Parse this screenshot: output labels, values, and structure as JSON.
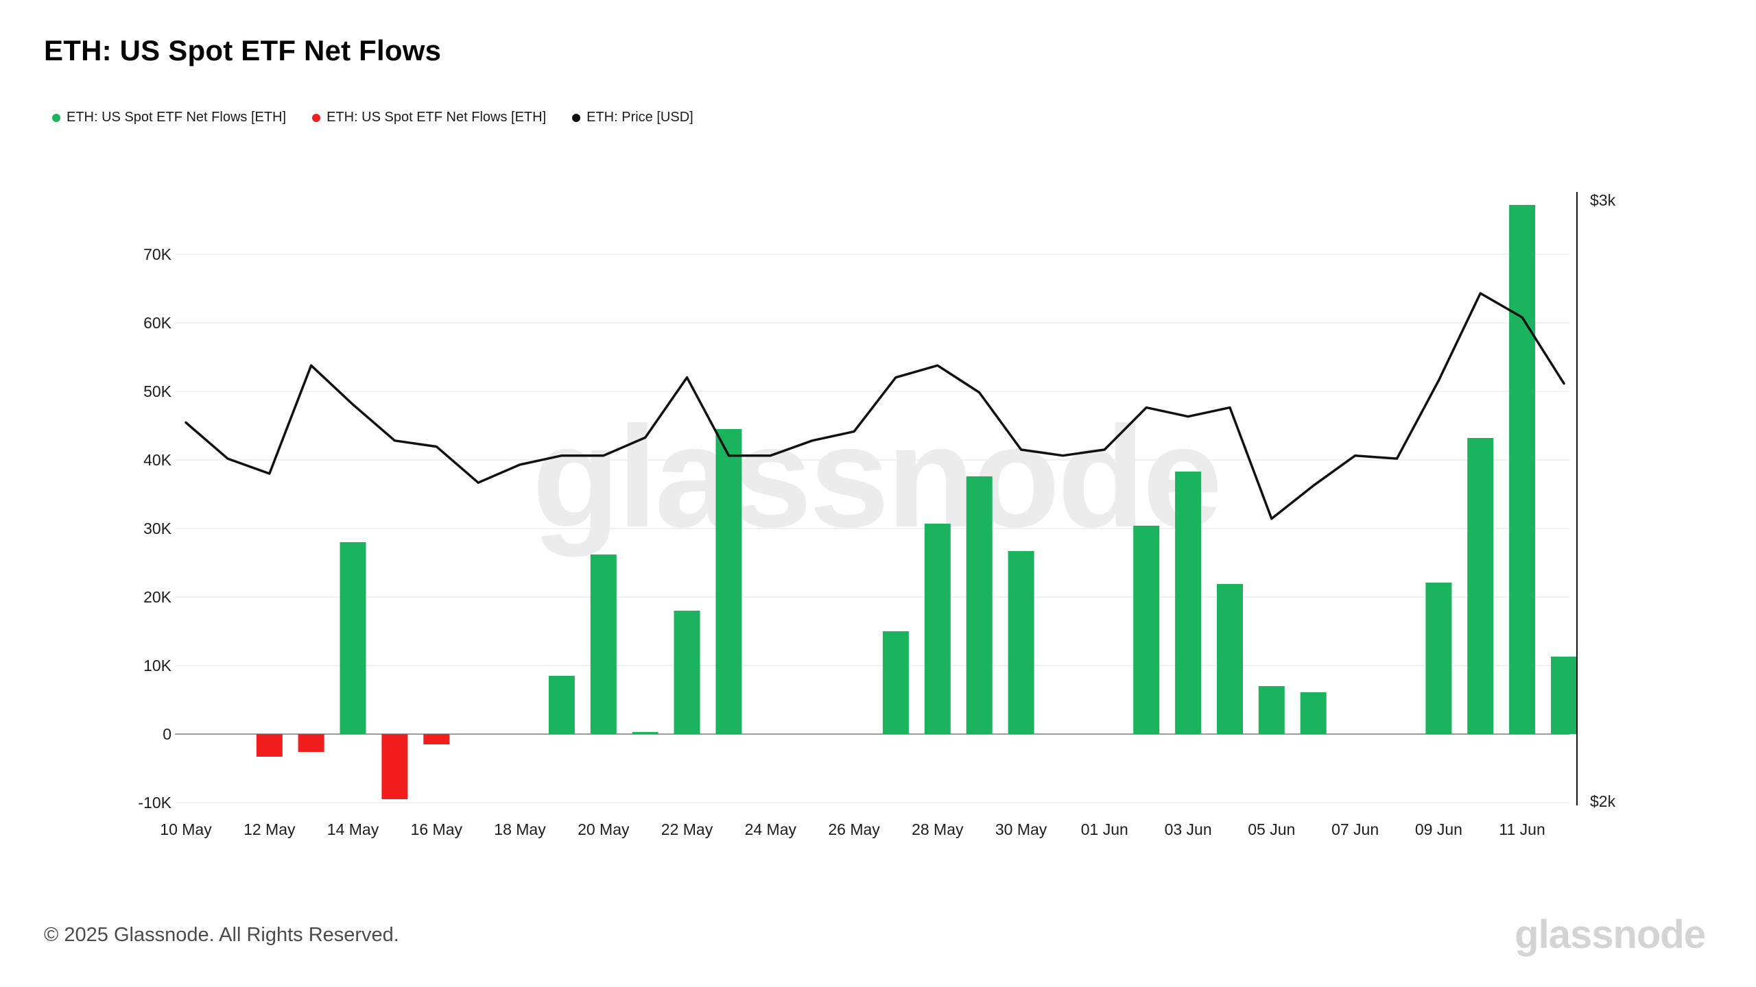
{
  "page": {
    "title": "ETH: US Spot ETF Net Flows"
  },
  "legend": {
    "items": [
      {
        "label": "ETH: US Spot ETF Net Flows [ETH]",
        "color": "#1cb35e"
      },
      {
        "label": "ETH: US Spot ETF Net Flows [ETH]",
        "color": "#f01d1c"
      },
      {
        "label": "ETH: Price [USD]",
        "color": "#111111"
      }
    ]
  },
  "watermark": {
    "center": "glassnode",
    "corner": "glassnode"
  },
  "footer": {
    "copyright": "© 2025 Glassnode. All Rights Reserved."
  },
  "chart_data": {
    "type": "bar+line",
    "title": "ETH: US Spot ETF Net Flows",
    "x": [
      "10 May",
      "11 May",
      "12 May",
      "13 May",
      "14 May",
      "15 May",
      "16 May",
      "17 May",
      "18 May",
      "19 May",
      "20 May",
      "21 May",
      "22 May",
      "23 May",
      "24 May",
      "25 May",
      "26 May",
      "27 May",
      "28 May",
      "29 May",
      "30 May",
      "31 May",
      "01 Jun",
      "02 Jun",
      "03 Jun",
      "04 Jun",
      "05 Jun",
      "06 Jun",
      "07 Jun",
      "08 Jun",
      "09 Jun",
      "10 Jun",
      "11 Jun",
      "12 Jun"
    ],
    "x_tick_labels": [
      "10 May",
      "12 May",
      "14 May",
      "16 May",
      "18 May",
      "20 May",
      "22 May",
      "24 May",
      "26 May",
      "28 May",
      "30 May",
      "01 Jun",
      "03 Jun",
      "05 Jun",
      "07 Jun",
      "09 Jun",
      "11 Jun"
    ],
    "series": [
      {
        "name": "ETH: US Spot ETF Net Flows [ETH]",
        "type": "bar",
        "axis": "left",
        "unit": "ETH",
        "color_positive": "#1cb35e",
        "color_negative": "#f01d1c",
        "values": [
          0,
          0,
          -3300,
          -2600,
          28000,
          -9500,
          -1500,
          0,
          0,
          8500,
          26200,
          300,
          18000,
          44500,
          0,
          0,
          0,
          15000,
          30700,
          37600,
          26700,
          0,
          0,
          30400,
          38300,
          21900,
          7000,
          6100,
          0,
          0,
          22100,
          43200,
          77200,
          11300
        ]
      },
      {
        "name": "ETH: Price [USD]",
        "type": "line",
        "axis": "right",
        "unit": "USD",
        "color": "#111111",
        "values": [
          2630,
          2570,
          2545,
          2725,
          2660,
          2600,
          2590,
          2530,
          2560,
          2575,
          2575,
          2605,
          2705,
          2575,
          2575,
          2600,
          2615,
          2705,
          2725,
          2680,
          2585,
          2575,
          2585,
          2655,
          2640,
          2655,
          2470,
          2525,
          2575,
          2570,
          2700,
          2845,
          2805,
          2695
        ]
      }
    ],
    "left_axis": {
      "ticks": [
        {
          "value": 70000,
          "label": "70K"
        },
        {
          "value": 60000,
          "label": "60K"
        },
        {
          "value": 50000,
          "label": "50K"
        },
        {
          "value": 40000,
          "label": "40K"
        },
        {
          "value": 30000,
          "label": "30K"
        },
        {
          "value": 20000,
          "label": "20K"
        },
        {
          "value": 10000,
          "label": "10K"
        },
        {
          "value": 0,
          "label": "0"
        },
        {
          "value": -10000,
          "label": "-10K"
        }
      ]
    },
    "right_axis": {
      "ticks": [
        {
          "value": 3000,
          "label": "$3k"
        },
        {
          "value": 2000,
          "label": "$2k"
        }
      ]
    },
    "grid": true,
    "legend_position": "top-left"
  }
}
